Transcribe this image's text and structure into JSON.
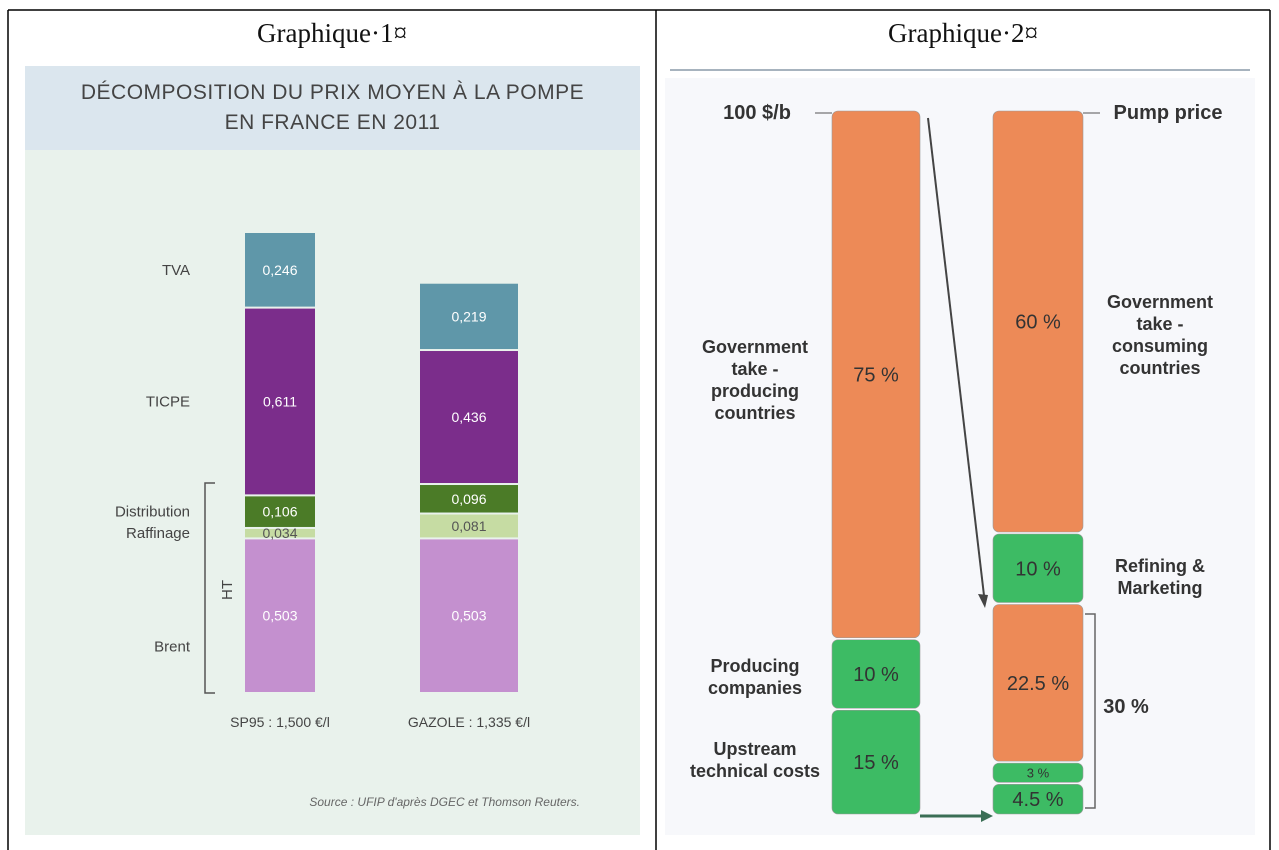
{
  "chart_data": [
    {
      "caption": "Graphique·1¤",
      "type": "stacked-bar",
      "title": "DÉCOMPOSITION DU PRIX MOYEN À LA POMPE\nEN FRANCE EN 2011",
      "categories": [
        "SP95 : 1,500 €/l",
        "GAZOLE : 1,335 €/l"
      ],
      "series": [
        {
          "name": "Brent",
          "color": "#c490cf",
          "values": [
            0.503,
            0.503
          ],
          "value_labels": [
            "0,503",
            "0,503"
          ]
        },
        {
          "name": "Raffinage",
          "color": "#c6dca3",
          "values": [
            0.034,
            0.081
          ],
          "value_labels": [
            "0,034",
            "0,081"
          ]
        },
        {
          "name": "Distribution",
          "color": "#4b7b27",
          "values": [
            0.106,
            0.096
          ],
          "value_labels": [
            "0,106",
            "0,096"
          ]
        },
        {
          "name": "TICPE",
          "color": "#7b2d8b",
          "values": [
            0.611,
            0.436
          ],
          "value_labels": [
            "0,611",
            "0,436"
          ]
        },
        {
          "name": "TVA",
          "color": "#5f97a9",
          "values": [
            0.246,
            0.219
          ],
          "value_labels": [
            "0,246",
            "0,219"
          ]
        }
      ],
      "bracket_label": "HT",
      "source": "Source : UFIP d'après DGEC et Thomson Reuters."
    },
    {
      "caption": "Graphique·2¤",
      "type": "stacked-column",
      "top_left_label": "100 $/b",
      "top_right_label": "Pump price",
      "bracket_label": "30 %",
      "stacks": [
        {
          "segments": [
            {
              "name": "Upstream technical costs",
              "value": 15,
              "value_label": "15 %",
              "color": "#3dbb64"
            },
            {
              "name": "Producing companies",
              "value": 10,
              "value_label": "10 %",
              "color": "#3dbb64"
            },
            {
              "name": "Government take - producing countries",
              "value": 75,
              "value_label": "75 %",
              "color": "#ed8a57"
            }
          ]
        },
        {
          "segments": [
            {
              "value": 4.5,
              "value_label": "4.5 %",
              "color": "#3dbb64"
            },
            {
              "value": 3,
              "value_label": "3 %",
              "color": "#3dbb64"
            },
            {
              "value": 22.5,
              "value_label": "22.5 %",
              "color": "#ed8a57"
            },
            {
              "name": "Refining & Marketing",
              "value": 10,
              "value_label": "10 %",
              "color": "#3dbb64"
            },
            {
              "name": "Government take - consuming countries",
              "value": 60,
              "value_label": "60 %",
              "color": "#ed8a57"
            }
          ]
        }
      ]
    }
  ]
}
